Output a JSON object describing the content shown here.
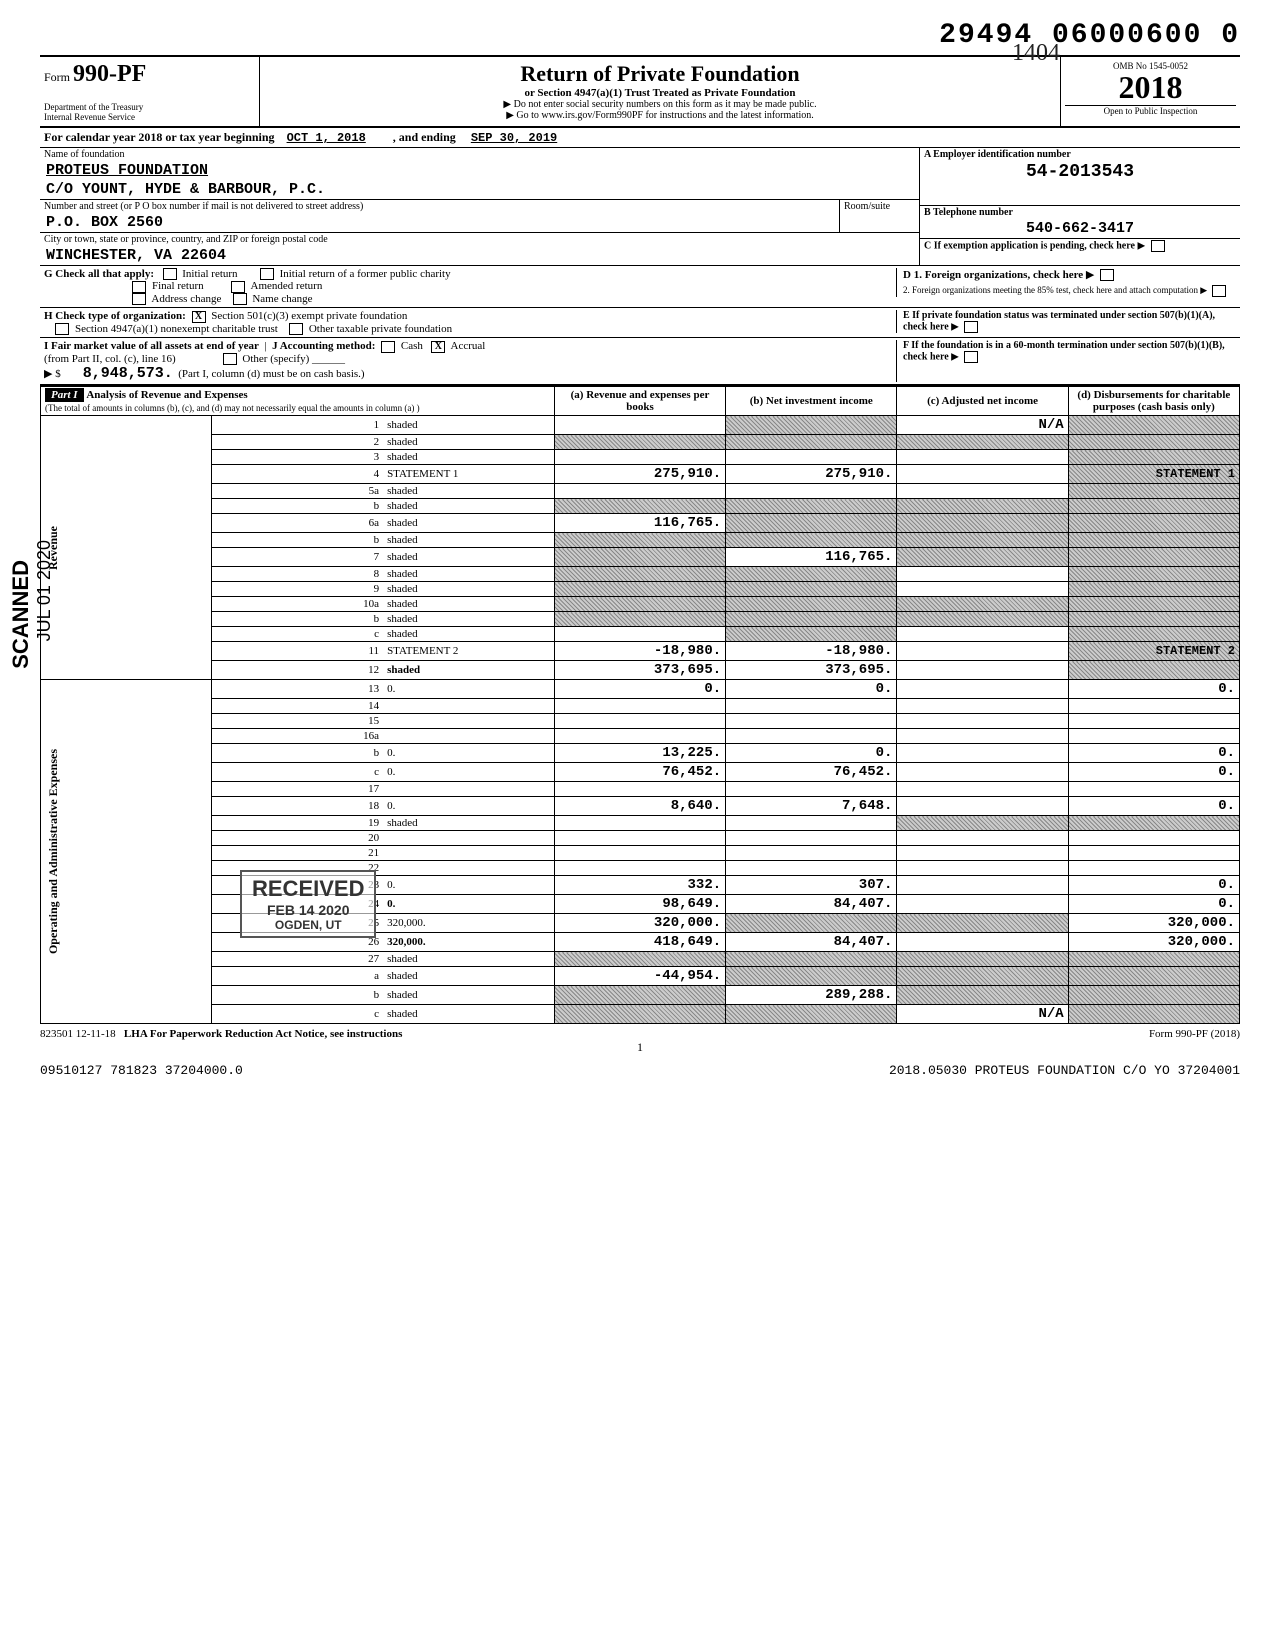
{
  "dln": "29494 06000600 0",
  "handwritten_note": "1404",
  "form": {
    "number": "990-PF",
    "prefix": "Form",
    "dept1": "Department of the Treasury",
    "dept2": "Internal Revenue Service",
    "title": "Return of Private Foundation",
    "subtitle": "or Section 4947(a)(1) Trust Treated as Private Foundation",
    "note1": "▶ Do not enter social security numbers on this form as it may be made public.",
    "note2": "▶ Go to www.irs.gov/Form990PF for instructions and the latest information.",
    "omb": "OMB No 1545-0052",
    "year": "2018",
    "open_inspection": "Open to Public Inspection"
  },
  "cal_year": {
    "prefix": "For calendar year 2018 or tax year beginning",
    "begin": "OCT 1, 2018",
    "mid": ", and ending",
    "end": "SEP 30, 2019"
  },
  "name_block": {
    "name_label": "Name of foundation",
    "name1": "PROTEUS FOUNDATION",
    "name2": "C/O YOUNT, HYDE & BARBOUR, P.C.",
    "addr_label": "Number and street (or P O box number if mail is not delivered to street address)",
    "room_label": "Room/suite",
    "addr": "P.O. BOX 2560",
    "city_label": "City or town, state or province, country, and ZIP or foreign postal code",
    "city": "WINCHESTER, VA  22604",
    "a_label": "A Employer identification number",
    "ein": "54-2013543",
    "b_label": "B Telephone number",
    "phone": "540-662-3417",
    "c_label": "C If exemption application is pending, check here"
  },
  "g": {
    "label": "G  Check all that apply:",
    "opts": [
      "Initial return",
      "Final return",
      "Address change",
      "Initial return of a former public charity",
      "Amended return",
      "Name change"
    ],
    "d1": "D 1. Foreign organizations, check here",
    "d2": "2. Foreign organizations meeting the 85% test, check here and attach computation"
  },
  "h": {
    "label": "H  Check type of organization:",
    "opt1": "Section 501(c)(3) exempt private foundation",
    "opt2": "Section 4947(a)(1) nonexempt charitable trust",
    "opt3": "Other taxable private foundation",
    "opt1_checked": "X",
    "e": "E If private foundation status was terminated under section 507(b)(1)(A), check here"
  },
  "i": {
    "label": "I  Fair market value of all assets at end of year",
    "sub": "(from Part II, col. (c), line 16)",
    "arrow": "▶ $",
    "value": "8,948,573.",
    "j_label": "J  Accounting method:",
    "j_cash": "Cash",
    "j_accrual": "Accrual",
    "j_accrual_checked": "X",
    "j_other": "Other (specify)",
    "j_note": "(Part I, column (d) must be on cash basis.)",
    "f": "F If the foundation is in a 60-month termination under section 507(b)(1)(B), check here"
  },
  "part1_header": {
    "part": "Part I",
    "title": "Analysis of Revenue and Expenses",
    "note": "(The total of amounts in columns (b), (c), and (d) may not necessarily equal the amounts in column (a) )",
    "col_a": "(a) Revenue and expenses per books",
    "col_b": "(b) Net investment income",
    "col_c": "(c) Adjusted net income",
    "col_d": "(d) Disbursements for charitable purposes (cash basis only)"
  },
  "side_labels": {
    "revenue": "Revenue",
    "expenses": "Operating and Administrative Expenses"
  },
  "rows": [
    {
      "n": "1",
      "d": "shaded",
      "a": "",
      "b": "shaded",
      "c": "N/A"
    },
    {
      "n": "2",
      "d": "shaded",
      "a": "shaded",
      "b": "shaded",
      "c": "shaded"
    },
    {
      "n": "3",
      "d": "shaded",
      "a": "",
      "b": "",
      "c": ""
    },
    {
      "n": "4",
      "d": "STATEMENT 1",
      "a": "275,910.",
      "b": "275,910.",
      "c": ""
    },
    {
      "n": "5a",
      "d": "shaded",
      "a": "",
      "b": "",
      "c": ""
    },
    {
      "n": "b",
      "d": "shaded",
      "a": "shaded",
      "b": "shaded",
      "c": "shaded"
    },
    {
      "n": "6a",
      "d": "shaded",
      "a": "116,765.",
      "b": "shaded",
      "c": "shaded"
    },
    {
      "n": "b",
      "d": "shaded",
      "a": "shaded",
      "b": "shaded",
      "c": "shaded"
    },
    {
      "n": "7",
      "d": "shaded",
      "a": "shaded",
      "b": "116,765.",
      "c": "shaded"
    },
    {
      "n": "8",
      "d": "shaded",
      "a": "shaded",
      "b": "shaded",
      "c": ""
    },
    {
      "n": "9",
      "d": "shaded",
      "a": "shaded",
      "b": "shaded",
      "c": ""
    },
    {
      "n": "10a",
      "d": "shaded",
      "a": "shaded",
      "b": "shaded",
      "c": "shaded"
    },
    {
      "n": "b",
      "d": "shaded",
      "a": "shaded",
      "b": "shaded",
      "c": "shaded"
    },
    {
      "n": "c",
      "d": "shaded",
      "a": "",
      "b": "shaded",
      "c": ""
    },
    {
      "n": "11",
      "d": "STATEMENT 2",
      "a": "-18,980.",
      "b": "-18,980.",
      "c": ""
    },
    {
      "n": "12",
      "d": "shaded",
      "a": "373,695.",
      "b": "373,695.",
      "c": ""
    },
    {
      "n": "13",
      "d": "0.",
      "a": "0.",
      "b": "0.",
      "c": ""
    },
    {
      "n": "14",
      "d": "",
      "a": "",
      "b": "",
      "c": ""
    },
    {
      "n": "15",
      "d": "",
      "a": "",
      "b": "",
      "c": ""
    },
    {
      "n": "16a",
      "d": "",
      "a": "",
      "b": "",
      "c": ""
    },
    {
      "n": "b",
      "d": "0.",
      "a": "13,225.",
      "b": "0.",
      "c": ""
    },
    {
      "n": "c",
      "d": "0.",
      "a": "76,452.",
      "b": "76,452.",
      "c": ""
    },
    {
      "n": "17",
      "d": "",
      "a": "",
      "b": "",
      "c": ""
    },
    {
      "n": "18",
      "d": "0.",
      "a": "8,640.",
      "b": "7,648.",
      "c": ""
    },
    {
      "n": "19",
      "d": "shaded",
      "a": "",
      "b": "",
      "c": "shaded"
    },
    {
      "n": "20",
      "d": "",
      "a": "",
      "b": "",
      "c": ""
    },
    {
      "n": "21",
      "d": "",
      "a": "",
      "b": "",
      "c": ""
    },
    {
      "n": "22",
      "d": "",
      "a": "",
      "b": "",
      "c": ""
    },
    {
      "n": "23",
      "d": "0.",
      "a": "332.",
      "b": "307.",
      "c": ""
    },
    {
      "n": "24",
      "d": "0.",
      "a": "98,649.",
      "b": "84,407.",
      "c": ""
    },
    {
      "n": "25",
      "d": "320,000.",
      "a": "320,000.",
      "b": "shaded",
      "c": "shaded"
    },
    {
      "n": "26",
      "d": "320,000.",
      "a": "418,649.",
      "b": "84,407.",
      "c": ""
    },
    {
      "n": "27",
      "d": "shaded",
      "a": "shaded",
      "b": "shaded",
      "c": "shaded"
    },
    {
      "n": "a",
      "d": "shaded",
      "a": "-44,954.",
      "b": "shaded",
      "c": "shaded"
    },
    {
      "n": "b",
      "d": "shaded",
      "a": "shaded",
      "b": "289,288.",
      "c": "shaded"
    },
    {
      "n": "c",
      "d": "shaded",
      "a": "shaded",
      "b": "shaded",
      "c": "N/A"
    }
  ],
  "stamps": {
    "received": "RECEIVED",
    "received_date": "FEB 14 2020",
    "received_loc": "OGDEN, UT",
    "scanned": "SCANNED",
    "scan_date": "JUL 01 2020"
  },
  "footer": {
    "code": "823501 12-11-18",
    "lha": "LHA  For Paperwork Reduction Act Notice, see instructions",
    "page": "1",
    "form_ref": "Form 990-PF (2018)",
    "bottom_left": "09510127 781823 37204000.0",
    "bottom_right": "2018.05030 PROTEUS FOUNDATION C/O YO 37204001"
  }
}
